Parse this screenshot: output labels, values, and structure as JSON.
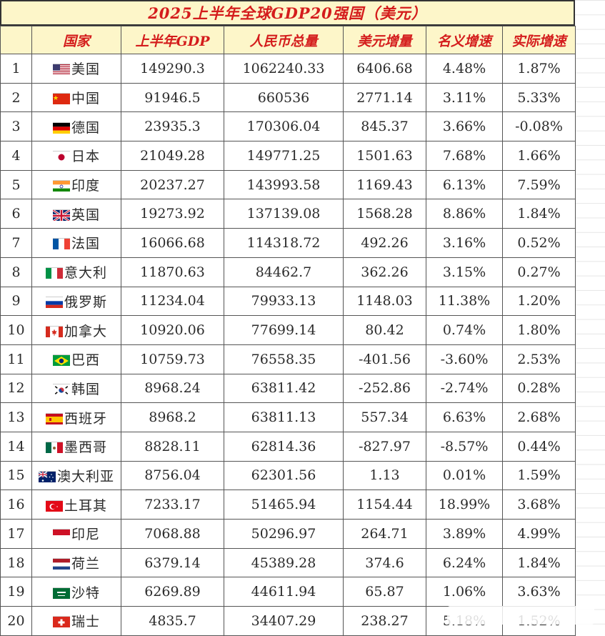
{
  "title": "2025上半年全球GDP20强国（美元）",
  "headers": [
    "",
    "国家",
    "上半年GDP",
    "人民币总量",
    "美元增量",
    "名义增速",
    "实际增速"
  ],
  "rows": [
    {
      "rank": "1",
      "flag": "us",
      "country": "美国",
      "gdp": "149290.3",
      "rmb": "1062240.33",
      "usd_inc": "6406.68",
      "nominal": "4.48%",
      "real": "1.87%",
      "neg_usd": false,
      "neg_nominal": false,
      "neg_real": false
    },
    {
      "rank": "2",
      "flag": "cn",
      "country": "中国",
      "gdp": "91946.5",
      "rmb": "660536",
      "usd_inc": "2771.14",
      "nominal": "3.11%",
      "real": "5.33%",
      "neg_usd": false,
      "neg_nominal": false,
      "neg_real": false
    },
    {
      "rank": "3",
      "flag": "de",
      "country": "德国",
      "gdp": "23935.3",
      "rmb": "170306.04",
      "usd_inc": "845.37",
      "nominal": "3.66%",
      "real": "-0.08%",
      "neg_usd": false,
      "neg_nominal": false,
      "neg_real": true
    },
    {
      "rank": "4",
      "flag": "jp",
      "country": "日本",
      "gdp": "21049.28",
      "rmb": "149771.25",
      "usd_inc": "1501.63",
      "nominal": "7.68%",
      "real": "1.66%",
      "neg_usd": false,
      "neg_nominal": false,
      "neg_real": false
    },
    {
      "rank": "5",
      "flag": "in",
      "country": "印度",
      "gdp": "20237.27",
      "rmb": "143993.58",
      "usd_inc": "1169.43",
      "nominal": "6.13%",
      "real": "7.59%",
      "neg_usd": false,
      "neg_nominal": false,
      "neg_real": false
    },
    {
      "rank": "6",
      "flag": "gb",
      "country": "英国",
      "gdp": "19273.92",
      "rmb": "137139.08",
      "usd_inc": "1568.28",
      "nominal": "8.86%",
      "real": "1.84%",
      "neg_usd": false,
      "neg_nominal": false,
      "neg_real": false
    },
    {
      "rank": "7",
      "flag": "fr",
      "country": "法国",
      "gdp": "16066.68",
      "rmb": "114318.72",
      "usd_inc": "492.26",
      "nominal": "3.16%",
      "real": "0.52%",
      "neg_usd": false,
      "neg_nominal": false,
      "neg_real": false
    },
    {
      "rank": "8",
      "flag": "it",
      "country": "意大利",
      "gdp": "11870.63",
      "rmb": "84462.7",
      "usd_inc": "362.26",
      "nominal": "3.15%",
      "real": "0.27%",
      "neg_usd": false,
      "neg_nominal": false,
      "neg_real": false
    },
    {
      "rank": "9",
      "flag": "ru",
      "country": "俄罗斯",
      "gdp": "11234.04",
      "rmb": "79933.13",
      "usd_inc": "1148.03",
      "nominal": "11.38%",
      "real": "1.20%",
      "neg_usd": false,
      "neg_nominal": false,
      "neg_real": false
    },
    {
      "rank": "10",
      "flag": "ca",
      "country": "加拿大",
      "gdp": "10920.06",
      "rmb": "77699.14",
      "usd_inc": "80.42",
      "nominal": "0.74%",
      "real": "1.80%",
      "neg_usd": false,
      "neg_nominal": false,
      "neg_real": false
    },
    {
      "rank": "11",
      "flag": "br",
      "country": "巴西",
      "gdp": "10759.73",
      "rmb": "76558.35",
      "usd_inc": "-401.56",
      "nominal": "-3.60%",
      "real": "2.53%",
      "neg_usd": true,
      "neg_nominal": true,
      "neg_real": false
    },
    {
      "rank": "12",
      "flag": "kr",
      "country": "韩国",
      "gdp": "8968.24",
      "rmb": "63811.42",
      "usd_inc": "-252.86",
      "nominal": "-2.74%",
      "real": "0.28%",
      "neg_usd": true,
      "neg_nominal": true,
      "neg_real": false
    },
    {
      "rank": "13",
      "flag": "es",
      "country": "西班牙",
      "gdp": "8968.2",
      "rmb": "63811.13",
      "usd_inc": "557.34",
      "nominal": "6.63%",
      "real": "2.68%",
      "neg_usd": false,
      "neg_nominal": false,
      "neg_real": false
    },
    {
      "rank": "14",
      "flag": "mx",
      "country": "墨西哥",
      "gdp": "8828.11",
      "rmb": "62814.36",
      "usd_inc": "-827.97",
      "nominal": "-8.57%",
      "real": "0.44%",
      "neg_usd": true,
      "neg_nominal": true,
      "neg_real": false
    },
    {
      "rank": "15",
      "flag": "au",
      "country": "澳大利亚",
      "gdp": "8756.04",
      "rmb": "62301.56",
      "usd_inc": "1.13",
      "nominal": "0.01%",
      "real": "1.59%",
      "neg_usd": false,
      "neg_nominal": false,
      "neg_real": false
    },
    {
      "rank": "16",
      "flag": "tr",
      "country": "土耳其",
      "gdp": "7233.17",
      "rmb": "51465.94",
      "usd_inc": "1154.44",
      "nominal": "18.99%",
      "real": "3.68%",
      "neg_usd": false,
      "neg_nominal": false,
      "neg_real": false
    },
    {
      "rank": "17",
      "flag": "id",
      "country": "印尼",
      "gdp": "7068.88",
      "rmb": "50296.97",
      "usd_inc": "264.71",
      "nominal": "3.89%",
      "real": "4.99%",
      "neg_usd": false,
      "neg_nominal": false,
      "neg_real": false
    },
    {
      "rank": "18",
      "flag": "nl",
      "country": "荷兰",
      "gdp": "6379.14",
      "rmb": "45389.28",
      "usd_inc": "374.6",
      "nominal": "6.24%",
      "real": "1.84%",
      "neg_usd": false,
      "neg_nominal": false,
      "neg_real": false
    },
    {
      "rank": "19",
      "flag": "sa",
      "country": "沙特",
      "gdp": "6269.89",
      "rmb": "44611.94",
      "usd_inc": "65.87",
      "nominal": "1.06%",
      "real": "3.63%",
      "neg_usd": false,
      "neg_nominal": false,
      "neg_real": false
    },
    {
      "rank": "20",
      "flag": "ch",
      "country": "瑞士",
      "gdp": "4835.7",
      "rmb": "34407.29",
      "usd_inc": "238.27",
      "nominal": "5.18%",
      "real": "1.52%",
      "neg_usd": false,
      "neg_nominal": false,
      "neg_real": false
    }
  ],
  "colors": {
    "header_text": "#d41c1c",
    "header_bg": "#fdf6c9",
    "negative": "#3fcf3f"
  }
}
